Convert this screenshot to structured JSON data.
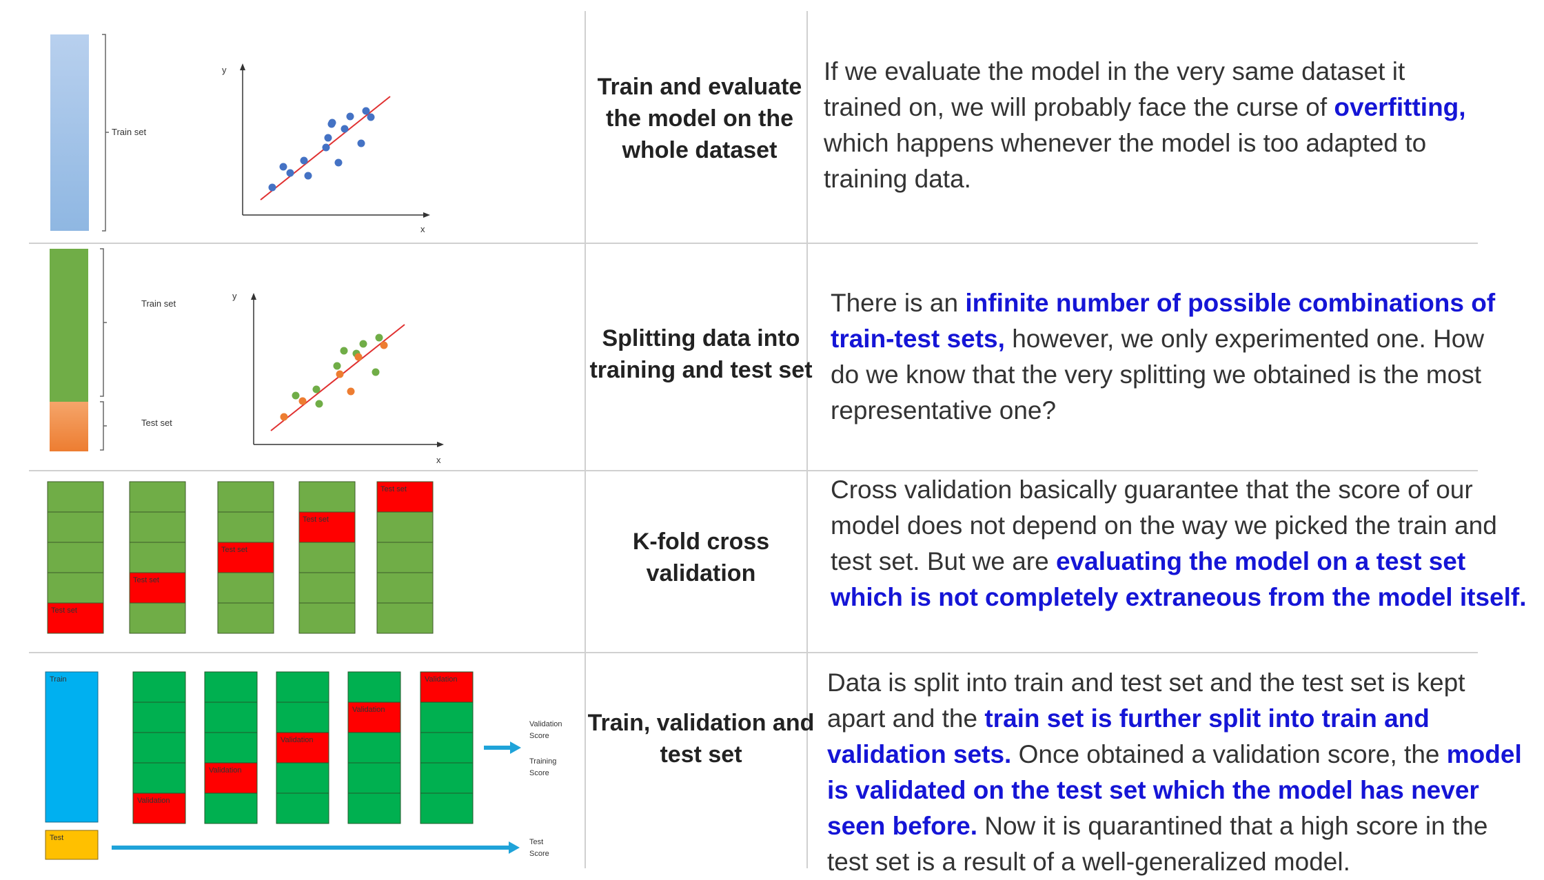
{
  "rows": [
    {
      "title": "Train and evaluate the model on the whole dataset",
      "labels": {
        "train_set": "Train set",
        "y_axis": "y",
        "x_axis": "x"
      },
      "desc": [
        {
          "t": "If we evaluate the model in the very same dataset it trained on, we will probably face the curse of ",
          "h": false
        },
        {
          "t": "overfitting,",
          "h": true
        },
        {
          "t": " which happens whenever the model is too adapted to training data.",
          "h": false
        }
      ]
    },
    {
      "title": "Splitting data into training and test set",
      "labels": {
        "train_set": "Train set",
        "test_set": "Test set",
        "y_axis": "y",
        "x_axis": "x"
      },
      "desc": [
        {
          "t": "There is an ",
          "h": false
        },
        {
          "t": "infinite number of possible combinations of train-test sets,",
          "h": true
        },
        {
          "t": " however, we only experimented one. How do we know that the very splitting we obtained is the most representative one?",
          "h": false
        }
      ]
    },
    {
      "title": "K-fold cross validation",
      "labels": {
        "test_set": "Test set"
      },
      "desc": [
        {
          "t": "Cross validation basically guarantee that the score of our model does not depend on the way we picked the train and test set. But we are ",
          "h": false
        },
        {
          "t": "evaluating the model on a test set which is not completely extraneous from the model itself.",
          "h": true
        }
      ]
    },
    {
      "title": "Train, validation and test set",
      "labels": {
        "train": "Train",
        "test": "Test",
        "validation": "Validation",
        "validation_score": "Validation Score",
        "training_score": "Training Score",
        "test_score": "Test Score"
      },
      "desc": [
        {
          "t": "Data is split into train and test set and the test set is kept apart and the ",
          "h": false
        },
        {
          "t": "train set is further split into train and validation sets.",
          "h": true
        },
        {
          "t": " Once obtained a validation score, the ",
          "h": false
        },
        {
          "t": "model is validated on the test set which the model has never seen before.",
          "h": true
        },
        {
          "t": " Now it is quarantined that a high score in the test set is a result of a well-generalized model.",
          "h": false
        }
      ]
    }
  ],
  "colors": {
    "highlight": "#1515d6",
    "train_light": "#a9c8ea",
    "train_green": "#70ad47",
    "test_orange": "#ed7d31",
    "test_red": "#ff0000",
    "fold_green": "#00b050",
    "train_cyan": "#00b0f0",
    "test_yellow": "#ffc000",
    "arrow": "#1fa3d9",
    "point_blue": "#4472c4",
    "fit_line": "#e03030"
  }
}
